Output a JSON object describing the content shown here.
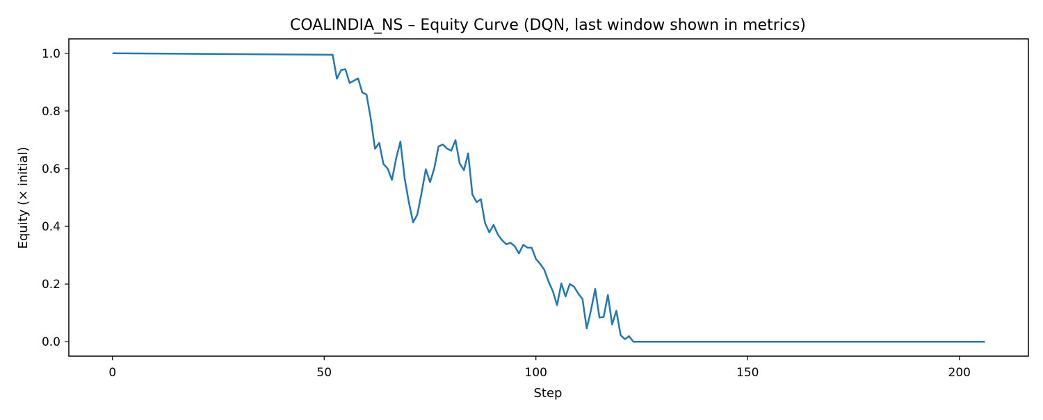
{
  "chart_data": {
    "type": "line",
    "title": "COALINDIA_NS – Equity Curve (DQN, last window shown in metrics)",
    "xlabel": "Step",
    "ylabel": "Equity (× initial)",
    "xlim": [
      -10.3,
      216.3
    ],
    "ylim": [
      -0.05,
      1.05
    ],
    "x_ticks": [
      0,
      50,
      100,
      150,
      200
    ],
    "x_tick_labels": [
      "0",
      "50",
      "100",
      "150",
      "200"
    ],
    "y_ticks": [
      0.0,
      0.2,
      0.4,
      0.6,
      0.8,
      1.0
    ],
    "y_tick_labels": [
      "0.0",
      "0.2",
      "0.4",
      "0.6",
      "0.8",
      "1.0"
    ],
    "grid": false,
    "legend": "none",
    "series": [
      {
        "color": "#1f77b4",
        "x": [
          0,
          52,
          53,
          54,
          55,
          56,
          57,
          58,
          59,
          60,
          61,
          62,
          63,
          64,
          65,
          66,
          67,
          68,
          69,
          70,
          71,
          72,
          73,
          74,
          75,
          76,
          77,
          78,
          79,
          80,
          81,
          82,
          83,
          84,
          85,
          86,
          87,
          88,
          89,
          90,
          91,
          92,
          93,
          94,
          95,
          96,
          97,
          98,
          99,
          100,
          101,
          102,
          103,
          104,
          105,
          106,
          107,
          108,
          109,
          110,
          111,
          112,
          113,
          114,
          115,
          116,
          117,
          118,
          119,
          120,
          121,
          122,
          123,
          150,
          206
        ],
        "y": [
          1.0,
          0.995,
          0.912,
          0.942,
          0.945,
          0.897,
          0.905,
          0.913,
          0.864,
          0.857,
          0.773,
          0.669,
          0.689,
          0.616,
          0.6,
          0.561,
          0.636,
          0.694,
          0.567,
          0.483,
          0.414,
          0.441,
          0.516,
          0.598,
          0.553,
          0.601,
          0.677,
          0.684,
          0.67,
          0.662,
          0.699,
          0.618,
          0.595,
          0.653,
          0.51,
          0.484,
          0.494,
          0.411,
          0.379,
          0.405,
          0.372,
          0.352,
          0.338,
          0.343,
          0.331,
          0.306,
          0.336,
          0.326,
          0.326,
          0.287,
          0.27,
          0.249,
          0.208,
          0.175,
          0.127,
          0.202,
          0.157,
          0.2,
          0.191,
          0.167,
          0.148,
          0.046,
          0.109,
          0.183,
          0.084,
          0.086,
          0.162,
          0.06,
          0.107,
          0.023,
          0.009,
          0.019,
          0.0,
          0.0,
          0.0
        ]
      }
    ]
  }
}
